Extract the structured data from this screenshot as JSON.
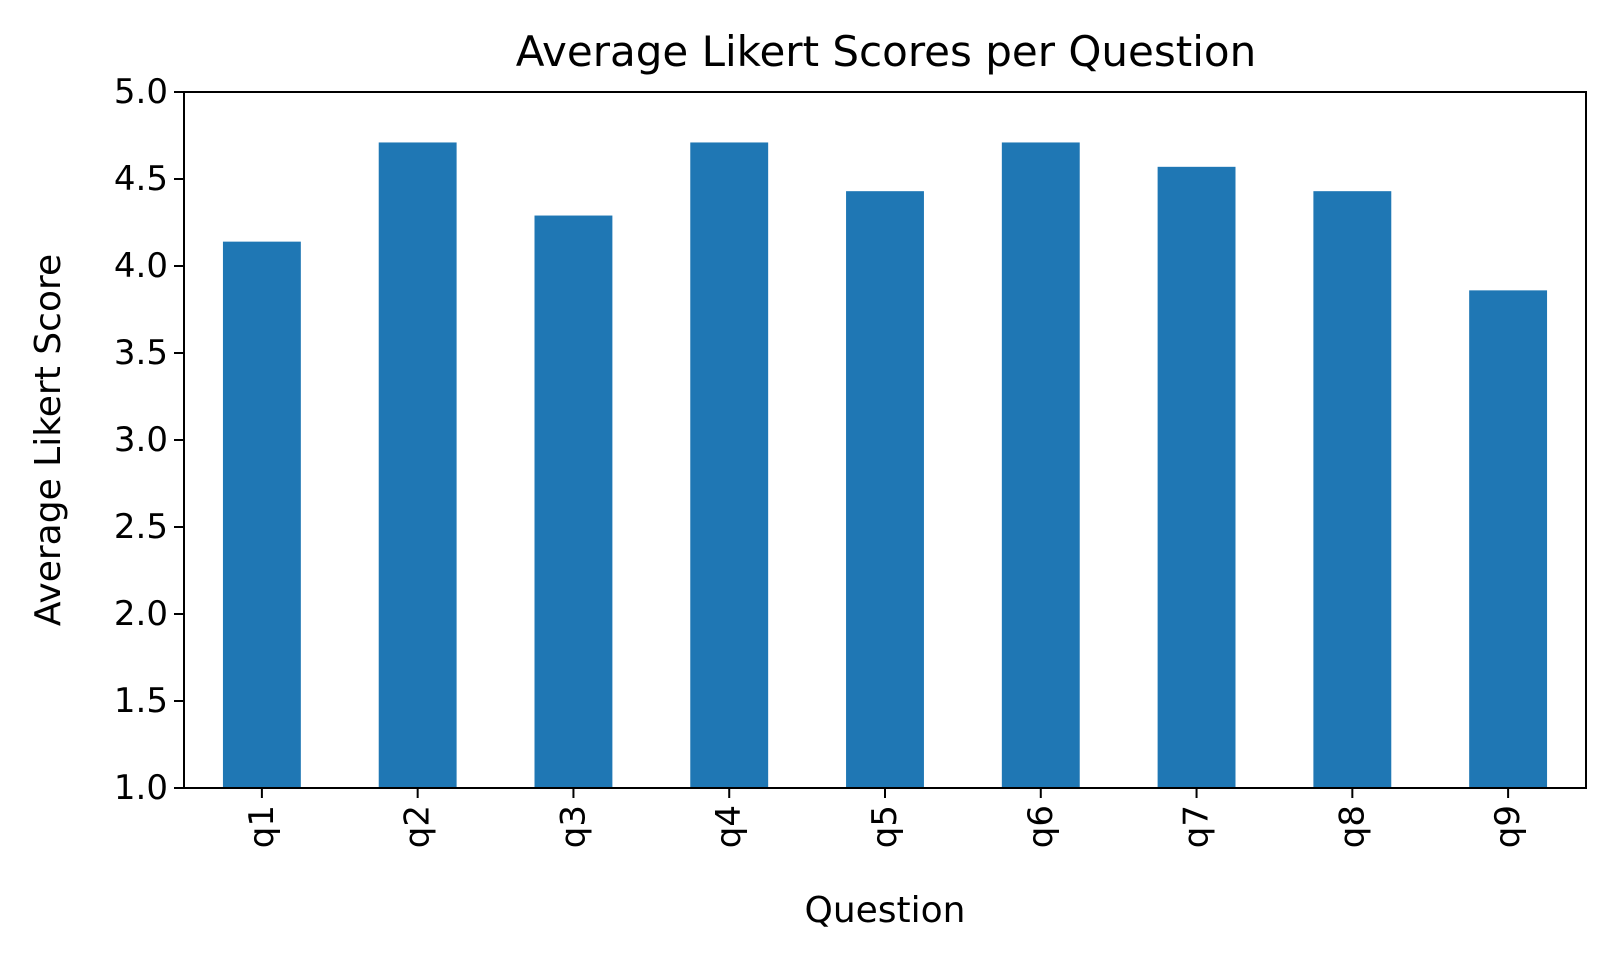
{
  "chart_data": {
    "type": "bar",
    "title": "Average Likert Scores per Question",
    "xlabel": "Question",
    "ylabel": "Average Likert Score",
    "categories": [
      "q1",
      "q2",
      "q3",
      "q4",
      "q5",
      "q6",
      "q7",
      "q8",
      "q9"
    ],
    "values": [
      4.14,
      4.71,
      4.29,
      4.71,
      4.43,
      4.71,
      4.57,
      4.43,
      3.86
    ],
    "ylim": [
      1.0,
      5.0
    ],
    "yticks": [
      "1.0",
      "1.5",
      "2.0",
      "2.5",
      "3.0",
      "3.5",
      "4.0",
      "4.5",
      "5.0"
    ],
    "bar_color": "#1f77b4",
    "grid": false,
    "legend": "none"
  }
}
